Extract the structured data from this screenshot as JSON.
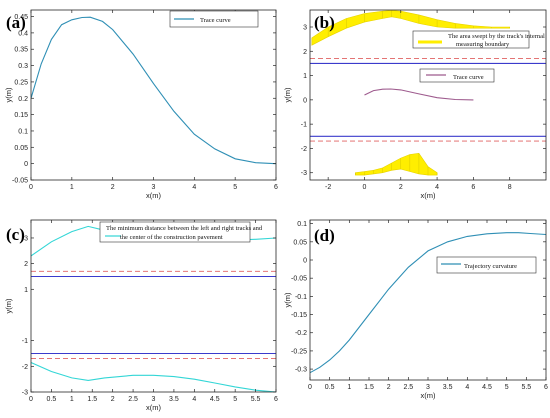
{
  "chart_data": [
    {
      "id": "a",
      "type": "line",
      "panel_label": "(a)",
      "xlabel": "x(m)",
      "ylabel": "y(m)",
      "xlim": [
        0,
        6
      ],
      "ylim": [
        -0.05,
        0.47
      ],
      "xticks": [
        "0",
        "1",
        "2",
        "3",
        "4",
        "5",
        "6"
      ],
      "yticks": [
        "-0.05",
        "0",
        "0.05",
        "0.1",
        "0.15",
        "0.2",
        "0.25",
        "0.3",
        "0.35",
        "0.4",
        "0.45"
      ],
      "legend_placement": "top-right",
      "grid": false,
      "series": [
        {
          "name": "Trace curve",
          "color": "#2f8fb5",
          "x": [
            0,
            0.25,
            0.5,
            0.75,
            1.0,
            1.25,
            1.45,
            1.75,
            2.0,
            2.5,
            3.0,
            3.5,
            4.0,
            4.5,
            5.0,
            5.5,
            6.0
          ],
          "y": [
            0.2,
            0.305,
            0.38,
            0.425,
            0.44,
            0.447,
            0.448,
            0.435,
            0.41,
            0.335,
            0.245,
            0.16,
            0.09,
            0.045,
            0.015,
            0.003,
            0.0
          ]
        }
      ]
    },
    {
      "id": "b",
      "type": "line",
      "panel_label": "(b)",
      "xlabel": "x(m)",
      "ylabel": "y(m)",
      "xlim": [
        -3,
        10
      ],
      "ylim": [
        -3.3,
        3.7
      ],
      "xticks": [
        "-2",
        "0",
        "2",
        "4",
        "6",
        "8"
      ],
      "yticks": [
        "-3",
        "-2",
        "-1",
        "0",
        "1",
        "2",
        "3"
      ],
      "grid": false,
      "legends": [
        {
          "label_lines": [
            "The area swept by the track's internal",
            "measuring boundary"
          ],
          "color": "#ffee00"
        },
        {
          "label_lines": [
            "Trace curve"
          ],
          "color": "#9e5b8e"
        }
      ],
      "series": [
        {
          "name": "Trace curve",
          "color": "#9e5b8e",
          "x": [
            0,
            0.5,
            1.0,
            1.45,
            2.0,
            3.0,
            4.0,
            5.0,
            6.0
          ],
          "y": [
            0.2,
            0.38,
            0.44,
            0.448,
            0.41,
            0.245,
            0.09,
            0.015,
            0.0
          ]
        },
        {
          "color": "#3b3bcc",
          "x": [
            -3,
            10
          ],
          "y": [
            1.5,
            1.5
          ]
        },
        {
          "color": "#3b3bcc",
          "x": [
            -3,
            10
          ],
          "y": [
            -1.5,
            -1.5
          ]
        },
        {
          "color": "#e06060",
          "style": "dashed",
          "x": [
            -3,
            10
          ],
          "y": [
            1.7,
            1.7
          ]
        },
        {
          "color": "#e06060",
          "style": "dashed",
          "x": [
            -3,
            10
          ],
          "y": [
            -1.7,
            -1.7
          ]
        }
      ],
      "bands": [
        {
          "color": "#ffee00",
          "upper": {
            "x": [
              -2.9,
              -2,
              -1,
              0,
              1,
              1.5,
              2,
              3,
              4,
              5,
              6,
              7,
              8
            ],
            "y": [
              2.55,
              3.0,
              3.35,
              3.55,
              3.65,
              3.68,
              3.65,
              3.5,
              3.3,
              3.15,
              3.05,
              3.0,
              3.0
            ]
          },
          "lower": {
            "x": [
              -2.9,
              -2,
              -1,
              0,
              1,
              1.5,
              2,
              3,
              4,
              5,
              6,
              7,
              8
            ],
            "y": [
              2.25,
              2.6,
              2.95,
              3.2,
              3.35,
              3.42,
              3.35,
              3.15,
              3.0,
              2.95,
              2.95,
              2.95,
              2.95
            ]
          }
        },
        {
          "color": "#ffee00",
          "upper": {
            "x": [
              -0.5,
              0,
              0.5,
              1.0,
              1.5,
              2.0,
              2.5,
              3.0,
              3.5,
              4.0
            ],
            "y": [
              -3.0,
              -2.95,
              -2.9,
              -2.8,
              -2.6,
              -2.4,
              -2.25,
              -2.2,
              -2.75,
              -3.0
            ]
          },
          "lower": {
            "x": [
              -0.5,
              0,
              0.5,
              1.0,
              1.5,
              2.0,
              2.5,
              3.0,
              3.5,
              4.0
            ],
            "y": [
              -3.1,
              -3.1,
              -3.05,
              -3.0,
              -2.9,
              -2.85,
              -2.95,
              -3.05,
              -3.1,
              -3.1
            ]
          }
        }
      ]
    },
    {
      "id": "c",
      "type": "line",
      "panel_label": "(c)",
      "xlabel": "x(m)",
      "ylabel": "y(m)",
      "xlim": [
        0,
        6
      ],
      "ylim": [
        -3,
        3.7
      ],
      "xticks": [
        "0",
        "0.5",
        "1",
        "1.5",
        "2",
        "2.5",
        "3",
        "3.5",
        "4",
        "4.5",
        "5",
        "5.5",
        "6"
      ],
      "yticks": [
        "-3",
        "-2",
        "-1",
        "1",
        "2",
        "3"
      ],
      "grid": false,
      "legends": [
        {
          "label_lines": [
            "The minimum distance between the left and right tracks and",
            "the center of the construction pavement"
          ],
          "color": "#33d6d6"
        }
      ],
      "series": [
        {
          "name": "The minimum distance between the left and right tracks and the center of the construction pavement",
          "color": "#33d6d6",
          "x": [
            0,
            0.5,
            1.0,
            1.4,
            1.8,
            2.5,
            3.0,
            3.5,
            4.0,
            4.5,
            5.0,
            5.5,
            6.0
          ],
          "y": [
            2.3,
            2.85,
            3.25,
            3.45,
            3.3,
            3.05,
            2.95,
            2.9,
            2.9,
            2.9,
            2.92,
            2.95,
            3.0
          ]
        },
        {
          "color": "#33d6d6",
          "x": [
            0,
            0.5,
            1.0,
            1.4,
            1.8,
            2.5,
            3.0,
            3.5,
            4.0,
            4.5,
            5.0,
            5.5,
            6.0
          ],
          "y": [
            -1.85,
            -2.2,
            -2.45,
            -2.55,
            -2.45,
            -2.35,
            -2.35,
            -2.4,
            -2.5,
            -2.65,
            -2.8,
            -2.93,
            -3.0
          ]
        },
        {
          "color": "#3b3bcc",
          "x": [
            0,
            6
          ],
          "y": [
            1.5,
            1.5
          ]
        },
        {
          "color": "#3b3bcc",
          "x": [
            0,
            6
          ],
          "y": [
            -1.5,
            -1.5
          ]
        },
        {
          "color": "#e06060",
          "style": "dashed",
          "x": [
            0,
            6
          ],
          "y": [
            1.7,
            1.7
          ]
        },
        {
          "color": "#e06060",
          "style": "dashed",
          "x": [
            0,
            6
          ],
          "y": [
            -1.7,
            -1.7
          ]
        }
      ]
    },
    {
      "id": "d",
      "type": "line",
      "panel_label": "(d)",
      "xlabel": "x(m)",
      "ylabel": "y(m)",
      "xlim": [
        0,
        6
      ],
      "ylim": [
        -0.33,
        0.11
      ],
      "xticks": [
        "0",
        "0.5",
        "1",
        "1.5",
        "2",
        "2.5",
        "3",
        "3.5",
        "4",
        "4.5",
        "5",
        "5.5",
        "6"
      ],
      "yticks": [
        "-0.3",
        "-0.25",
        "-0.2",
        "-0.15",
        "-0.1",
        "-0.05",
        "0",
        "0.05",
        "0.1"
      ],
      "legend_placement": "top-right",
      "grid": false,
      "series": [
        {
          "name": "Trajectory curvature",
          "color": "#2f8fb5",
          "x": [
            0,
            0.25,
            0.5,
            0.75,
            1.0,
            1.5,
            2.0,
            2.5,
            3.0,
            3.5,
            4.0,
            4.5,
            5.0,
            5.3,
            5.6,
            6.0
          ],
          "y": [
            -0.31,
            -0.295,
            -0.275,
            -0.25,
            -0.22,
            -0.15,
            -0.08,
            -0.02,
            0.025,
            0.05,
            0.065,
            0.072,
            0.075,
            0.075,
            0.073,
            0.07
          ]
        }
      ]
    }
  ]
}
